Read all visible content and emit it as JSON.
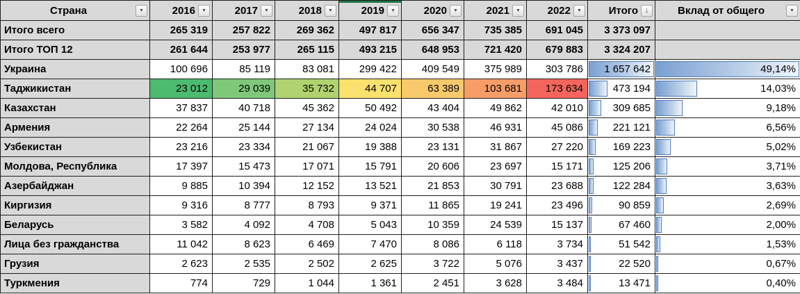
{
  "table": {
    "columns": [
      {
        "key": "country",
        "label": "Страна",
        "icon": "filter"
      },
      {
        "key": "y2016",
        "label": "2016",
        "icon": "filter"
      },
      {
        "key": "y2017",
        "label": "2017",
        "icon": "filter"
      },
      {
        "key": "y2018",
        "label": "2018",
        "icon": "filter"
      },
      {
        "key": "y2019",
        "label": "2019",
        "icon": "filter"
      },
      {
        "key": "y2020",
        "label": "2020",
        "icon": "filter"
      },
      {
        "key": "y2021",
        "label": "2021",
        "icon": "filter"
      },
      {
        "key": "y2022",
        "label": "2022",
        "icon": "filter"
      },
      {
        "key": "total",
        "label": "Итого",
        "icon": "sort"
      },
      {
        "key": "share",
        "label": "Вклад от общего",
        "icon": "filter"
      }
    ],
    "total_rows": [
      {
        "name": "Итого всего",
        "values": [
          "265 319",
          "257 822",
          "269 362",
          "497 817",
          "656 347",
          "735 385",
          "691 045"
        ],
        "total": "3 373 097",
        "share": ""
      },
      {
        "name": "Итого ТОП 12",
        "values": [
          "261 644",
          "253 977",
          "265 115",
          "493 215",
          "648 953",
          "721 420",
          "679 883"
        ],
        "total": "3 324 207",
        "share": ""
      }
    ],
    "countries": [
      {
        "name": "Украина",
        "values": [
          "100 696",
          "85 119",
          "83 081",
          "299 422",
          "409 549",
          "375 989",
          "303 786"
        ],
        "total": "1 657 642",
        "share": "49,14%",
        "bar": 1.0
      },
      {
        "name": "Таджикистан",
        "values": [
          "23 012",
          "29 039",
          "35 732",
          "44 707",
          "63 389",
          "103 681",
          "173 634"
        ],
        "total": "473 194",
        "share": "14,03%",
        "bar": 0.2855,
        "value_colors": [
          "#4cba6f",
          "#7fc87a",
          "#b0d36f",
          "#fbe16d",
          "#fbc96d",
          "#f89c68",
          "#f4655d"
        ]
      },
      {
        "name": "Казахстан",
        "values": [
          "37 837",
          "40 718",
          "45 362",
          "50 492",
          "43 404",
          "49 862",
          "42 010"
        ],
        "total": "309 685",
        "share": "9,18%",
        "bar": 0.1868
      },
      {
        "name": "Армения",
        "values": [
          "22 264",
          "25 144",
          "27 134",
          "24 024",
          "30 538",
          "46 931",
          "45 086"
        ],
        "total": "221 121",
        "share": "6,56%",
        "bar": 0.1334
      },
      {
        "name": "Узбекистан",
        "values": [
          "23 216",
          "23 334",
          "21 067",
          "19 388",
          "23 131",
          "31 867",
          "27 220"
        ],
        "total": "169 223",
        "share": "5,02%",
        "bar": 0.1021
      },
      {
        "name": "Молдова, Республика",
        "values": [
          "17 397",
          "15 473",
          "17 071",
          "15 791",
          "20 606",
          "23 697",
          "15 171"
        ],
        "total": "125 206",
        "share": "3,71%",
        "bar": 0.0755
      },
      {
        "name": "Азербайджан",
        "values": [
          "9 885",
          "10 394",
          "12 152",
          "13 521",
          "21 853",
          "30 791",
          "23 688"
        ],
        "total": "122 284",
        "share": "3,63%",
        "bar": 0.0738
      },
      {
        "name": "Киргизия",
        "values": [
          "9 316",
          "8 777",
          "8 793",
          "9 371",
          "11 865",
          "19 241",
          "23 496"
        ],
        "total": "90 859",
        "share": "2,69%",
        "bar": 0.0548
      },
      {
        "name": "Беларусь",
        "values": [
          "3 582",
          "4 092",
          "4 708",
          "5 043",
          "10 359",
          "24 539",
          "15 137"
        ],
        "total": "67 460",
        "share": "2,00%",
        "bar": 0.0407
      },
      {
        "name": "Лица без гражданства",
        "values": [
          "11 042",
          "8 623",
          "6 469",
          "7 470",
          "8 086",
          "6 118",
          "3 734"
        ],
        "total": "51 542",
        "share": "1,53%",
        "bar": 0.0311
      },
      {
        "name": "Грузия",
        "values": [
          "2 623",
          "2 535",
          "2 502",
          "2 625",
          "3 722",
          "5 076",
          "3 437"
        ],
        "total": "22 520",
        "share": "0,67%",
        "bar": 0.0136
      },
      {
        "name": "Туркмения",
        "values": [
          "774",
          "729",
          "1 044",
          "1 361",
          "2 451",
          "3 628",
          "3 484"
        ],
        "total": "13 471",
        "share": "0,40%",
        "bar": 0.0081
      }
    ]
  },
  "icons": {
    "filter_glyph": "▼",
    "sort_glyph": "↓"
  },
  "colors": {
    "header_bg": "#d9d9d9",
    "label_bg": "#d9d9d9",
    "grid": "#1f1f1f",
    "bar_border": "#4e7cbd",
    "bar_fill_start": "#7aa0d2",
    "bar_fill_end": "#f0f5fb",
    "green_accent_2019": "#217346",
    "scale_min": "#4cba6f",
    "scale_mid": "#fbe16d",
    "scale_max": "#f4655d"
  }
}
